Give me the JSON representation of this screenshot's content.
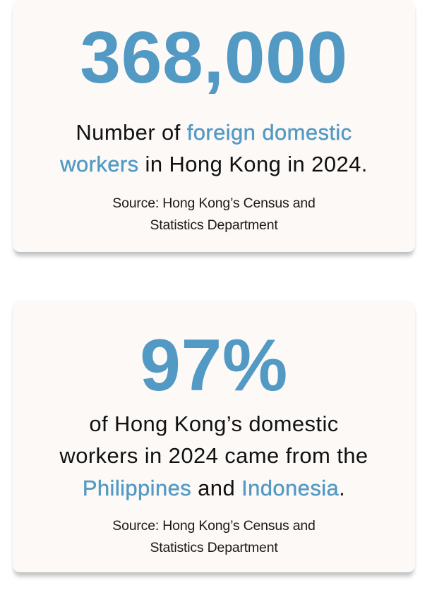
{
  "accent_color": "#5299c4",
  "cards": [
    {
      "stat": "368,000",
      "description": {
        "line1": {
          "pre": "Number of ",
          "highlight": "foreign domestic"
        },
        "line2": {
          "highlight": "workers",
          "post": " in Hong Kong in 2024."
        }
      },
      "source": {
        "line1": "Source: Hong Kong’s Census and",
        "line2": "Statistics Department"
      }
    },
    {
      "stat": "97%",
      "description": {
        "line1": "of Hong Kong’s domestic",
        "line2": "workers in 2024 came from the",
        "line3": {
          "highlight1": "Philippines",
          "mid": " and ",
          "highlight2": "Indonesia",
          "post": "."
        }
      },
      "source": {
        "line1": "Source: Hong Kong’s Census and",
        "line2": "Statistics Department"
      }
    }
  ]
}
